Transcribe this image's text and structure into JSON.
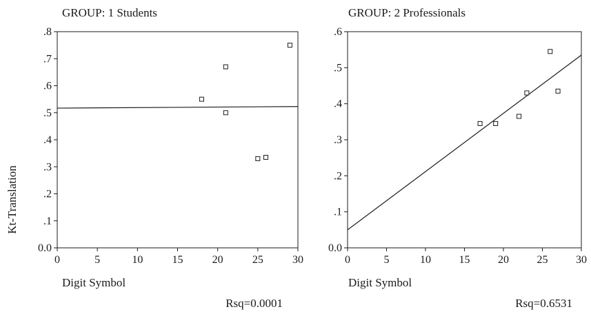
{
  "figure": {
    "ylabel": "Kt-Translation"
  },
  "chart_data": [
    {
      "type": "scatter",
      "title": "GROUP: 1 Students",
      "xlabel": "Digit Symbol",
      "ylabel": "Kt-Translation",
      "annotation": "Rsq=0.0001",
      "xlim": [
        0,
        30
      ],
      "ylim": [
        0,
        0.8
      ],
      "xticks": [
        0,
        5,
        10,
        15,
        20,
        25,
        30
      ],
      "xtick_labels": [
        "0",
        "5",
        "10",
        "15",
        "20",
        "25",
        "30"
      ],
      "yticks": [
        0,
        0.1,
        0.2,
        0.3,
        0.4,
        0.5,
        0.6,
        0.7,
        0.8
      ],
      "ytick_labels": [
        "0.0",
        ".1",
        ".2",
        ".3",
        ".4",
        ".5",
        ".6",
        ".7",
        ".8"
      ],
      "grid": false,
      "points": [
        {
          "x": 18,
          "y": 0.55
        },
        {
          "x": 21,
          "y": 0.67
        },
        {
          "x": 21,
          "y": 0.5
        },
        {
          "x": 25,
          "y": 0.33
        },
        {
          "x": 26,
          "y": 0.335
        },
        {
          "x": 29,
          "y": 0.75
        }
      ],
      "fit_line": {
        "x": [
          0,
          30
        ],
        "y": [
          0.517,
          0.523
        ]
      }
    },
    {
      "type": "scatter",
      "title": "GROUP: 2 Professionals",
      "xlabel": "Digit Symbol",
      "ylabel": "Kt-Translation",
      "annotation": "Rsq=0.6531",
      "xlim": [
        0,
        30
      ],
      "ylim": [
        0,
        0.6
      ],
      "xticks": [
        0,
        5,
        10,
        15,
        20,
        25,
        30
      ],
      "xtick_labels": [
        "0",
        "5",
        "10",
        "15",
        "20",
        "25",
        "30"
      ],
      "yticks": [
        0,
        0.1,
        0.2,
        0.3,
        0.4,
        0.5,
        0.6
      ],
      "ytick_labels": [
        "0.0",
        ".1",
        ".2",
        ".3",
        ".4",
        ".5",
        ".6"
      ],
      "grid": false,
      "points": [
        {
          "x": 17,
          "y": 0.345
        },
        {
          "x": 19,
          "y": 0.345
        },
        {
          "x": 22,
          "y": 0.365
        },
        {
          "x": 23,
          "y": 0.43
        },
        {
          "x": 26,
          "y": 0.545
        },
        {
          "x": 27,
          "y": 0.435
        }
      ],
      "fit_line": {
        "x": [
          0,
          30
        ],
        "y": [
          0.05,
          0.535
        ]
      }
    }
  ]
}
